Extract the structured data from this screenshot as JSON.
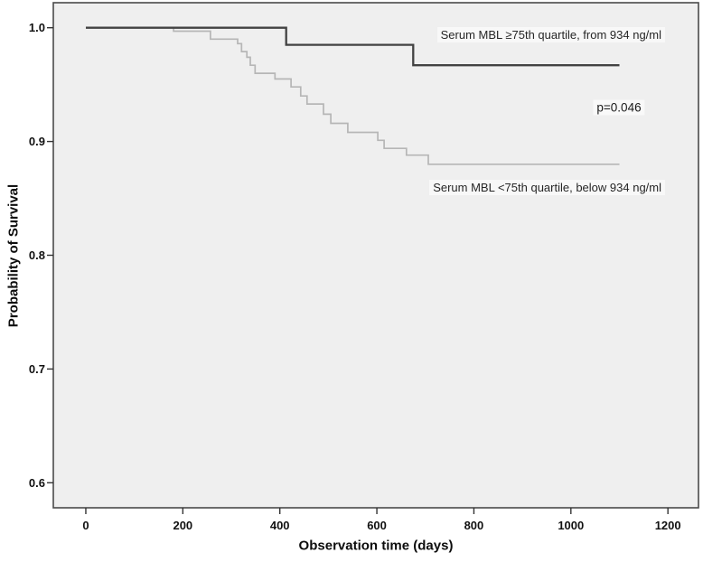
{
  "figure": {
    "y_axis_title": "Probability of Survival",
    "x_axis_title": "Observation time (days)",
    "p_value_label": "p=0.046",
    "high_curve_label": "Serum MBL ≥75th quartile, from 934 ng/ml",
    "low_curve_label": "Serum MBL <75th quartile, below 934 ng/ml"
  },
  "colors": {
    "plot_background": "#efefef",
    "plot_border": "#4a4a4a",
    "tick_mark": "#333333",
    "high_curve": "#424242",
    "low_curve": "#b6b6b6"
  },
  "chart_data": {
    "type": "line",
    "subtype": "kaplan-meier-step",
    "title": "",
    "xlabel": "Observation time (days)",
    "ylabel": "Probability of Survival",
    "xlim": [
      -67,
      1263
    ],
    "ylim": [
      0.578,
      1.022
    ],
    "x_ticks": [
      0,
      200,
      400,
      600,
      800,
      1000,
      1200
    ],
    "x_tick_labels": [
      "0",
      "200",
      "400",
      "600",
      "800",
      "1000",
      "1200"
    ],
    "y_ticks": [
      1.0,
      0.9,
      0.8,
      0.7,
      0.6
    ],
    "y_tick_labels": [
      "1.0",
      "0.9",
      "0.8",
      "0.7",
      "0.6"
    ],
    "grid": false,
    "legend_position": "labels-inside-plot",
    "annotations": [
      {
        "text": "p=0.046",
        "x": 1100,
        "y": 0.93
      }
    ],
    "series": [
      {
        "name": "Serum MBL <75th quartile, below 934 ng/ml",
        "color_key": "low_curve",
        "stroke_width": 1.7,
        "end_t": 1100,
        "steps": [
          {
            "t": 0,
            "s": 1.0
          },
          {
            "t": 181,
            "s": 0.997
          },
          {
            "t": 257,
            "s": 0.99
          },
          {
            "t": 313,
            "s": 0.986
          },
          {
            "t": 321,
            "s": 0.979
          },
          {
            "t": 332,
            "s": 0.974
          },
          {
            "t": 339,
            "s": 0.967
          },
          {
            "t": 349,
            "s": 0.96
          },
          {
            "t": 390,
            "s": 0.955
          },
          {
            "t": 423,
            "s": 0.948
          },
          {
            "t": 443,
            "s": 0.94
          },
          {
            "t": 456,
            "s": 0.933
          },
          {
            "t": 490,
            "s": 0.924
          },
          {
            "t": 505,
            "s": 0.916
          },
          {
            "t": 540,
            "s": 0.908
          },
          {
            "t": 602,
            "s": 0.901
          },
          {
            "t": 615,
            "s": 0.894
          },
          {
            "t": 661,
            "s": 0.888
          },
          {
            "t": 706,
            "s": 0.88
          }
        ]
      },
      {
        "name": "Serum MBL ≥75th quartile, from 934 ng/ml",
        "color_key": "high_curve",
        "stroke_width": 2.3,
        "end_t": 1100,
        "steps": [
          {
            "t": 0,
            "s": 1.0
          },
          {
            "t": 413,
            "s": 0.985
          },
          {
            "t": 675,
            "s": 0.967
          }
        ]
      }
    ]
  }
}
